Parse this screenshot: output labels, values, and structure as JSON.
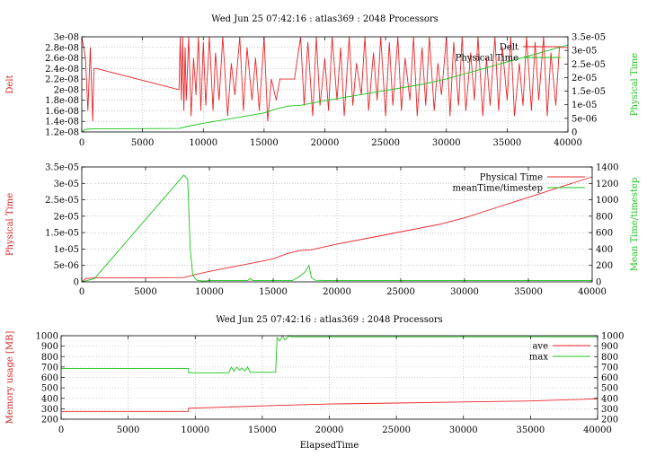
{
  "chart_data": [
    {
      "type": "line",
      "title": "Wed Jun 25 07:42:16 : atlas369 : 2048 Processors",
      "xlabel": "",
      "ylabel": "Delt",
      "y2label": "Physical Time",
      "xlim": [
        0,
        40000
      ],
      "ylim": [
        1.2e-08,
        3e-08
      ],
      "y2lim": [
        0,
        3.5e-05
      ],
      "grid": true,
      "legend_position": "top-right",
      "x_ticks": [
        0,
        5000,
        10000,
        15000,
        20000,
        25000,
        30000,
        35000,
        40000
      ],
      "x_tick_labels": [
        "0",
        "5000",
        "10000",
        "15000",
        "20000",
        "25000",
        "30000",
        "35000",
        "40000"
      ],
      "y_ticks": [
        1.2e-08,
        1.4e-08,
        1.6e-08,
        1.8e-08,
        2e-08,
        2.2e-08,
        2.4e-08,
        2.6e-08,
        2.8e-08,
        3e-08
      ],
      "y_tick_labels": [
        "1.2e-08",
        "1.4e-08",
        "1.6e-08",
        "1.8e-08",
        "2e-08",
        "2.2e-08",
        "2.4e-08",
        "2.6e-08",
        "2.8e-08",
        "3e-08"
      ],
      "y2_ticks": [
        0,
        5e-06,
        1e-05,
        1.5e-05,
        2e-05,
        2.5e-05,
        3e-05,
        3.5e-05
      ],
      "y2_tick_labels": [
        "0",
        "5e-06",
        "1e-05",
        "1.5e-05",
        "2e-05",
        "2.5e-05",
        "3e-05",
        "3.5e-05"
      ],
      "series": [
        {
          "name": "Delt",
          "axis": "y",
          "color": "#e8262a",
          "x": [
            0,
            300,
            500,
            700,
            900,
            1000,
            1200,
            8000,
            8100,
            8200,
            8300,
            8400,
            8500,
            8600,
            8800,
            9000,
            9200,
            9400,
            9600,
            9800,
            10000,
            10200,
            10500,
            10800,
            11000,
            11300,
            11600,
            12000,
            12300,
            12600,
            13000,
            13300,
            13600,
            14000,
            14300,
            14600,
            15000,
            15300,
            15600,
            16000,
            16300,
            16600,
            17000,
            17500,
            18000,
            18300,
            18600,
            19000,
            19300,
            19600,
            20000,
            20300,
            20600,
            21000,
            21300,
            21600,
            22000,
            22300,
            22600,
            23000,
            23300,
            23600,
            24000,
            24300,
            24600,
            25000,
            25300,
            25600,
            26000,
            26300,
            26600,
            27000,
            27300,
            27600,
            28000,
            28300,
            28600,
            29000,
            29300,
            29600,
            30000,
            30300,
            30600,
            31000,
            31300,
            31600,
            32000,
            32300,
            32600,
            33000,
            33300,
            33600,
            34000,
            34300,
            34600,
            35000,
            35300,
            35600,
            36000,
            36300,
            36600,
            37000,
            37300,
            37600,
            38000,
            38300,
            38600,
            39000,
            39300,
            39600,
            40000
          ],
          "y": [
            3e-08,
            2.6e-08,
            1.6e-08,
            2.8e-08,
            1.4e-08,
            2.4e-08,
            2.4e-08,
            2e-08,
            3e-08,
            1.8e-08,
            3e-08,
            1.6e-08,
            2.8e-08,
            1.8e-08,
            3e-08,
            1.5e-08,
            2.6e-08,
            1.9e-08,
            3e-08,
            1.6e-08,
            2.9e-08,
            1.7e-08,
            3e-08,
            1.6e-08,
            2.7e-08,
            1.8e-08,
            3e-08,
            1.5e-08,
            2.5e-08,
            1.9e-08,
            3e-08,
            1.6e-08,
            2.8e-08,
            1.8e-08,
            2.6e-08,
            1.6e-08,
            3e-08,
            1.4e-08,
            2.2e-08,
            1.8e-08,
            2.2e-08,
            2.2e-08,
            2.2e-08,
            2.2e-08,
            3e-08,
            1.7e-08,
            2.9e-08,
            1.5e-08,
            3e-08,
            1.7e-08,
            2.6e-08,
            1.6e-08,
            3e-08,
            1.8e-08,
            2.8e-08,
            1.5e-08,
            3e-08,
            1.7e-08,
            2.5e-08,
            1.9e-08,
            3e-08,
            1.6e-08,
            2.7e-08,
            1.8e-08,
            3e-08,
            1.5e-08,
            2.9e-08,
            1.7e-08,
            3e-08,
            1.6e-08,
            2.6e-08,
            1.8e-08,
            3e-08,
            1.5e-08,
            2.8e-08,
            1.7e-08,
            3e-08,
            1.6e-08,
            2.5e-08,
            1.9e-08,
            3e-08,
            1.5e-08,
            2.9e-08,
            1.7e-08,
            3e-08,
            1.6e-08,
            2.7e-08,
            1.8e-08,
            3e-08,
            1.5e-08,
            2.6e-08,
            1.7e-08,
            3e-08,
            1.6e-08,
            2.8e-08,
            1.8e-08,
            3e-08,
            1.5e-08,
            2.5e-08,
            1.7e-08,
            3e-08,
            1.6e-08,
            2.9e-08,
            1.8e-08,
            3e-08,
            1.5e-08,
            2.7e-08,
            1.7e-08,
            2.8e-08,
            2.8e-08,
            2.8e-08
          ]
        },
        {
          "name": "Physical Time",
          "axis": "y2",
          "color": "#19c519",
          "x": [
            0,
            300,
            1000,
            3000,
            8000,
            8500,
            9000,
            10000,
            12000,
            14000,
            15000,
            16000,
            17000,
            18000,
            20000,
            22000,
            24000,
            26000,
            28000,
            30000,
            32000,
            34000,
            36000,
            38000,
            40000
          ],
          "y": [
            0,
            1e-06,
            1.2e-06,
            1.2e-06,
            1.3e-06,
            1.8e-06,
            2.3e-06,
            3.2e-06,
            4.7e-06,
            6.2e-06,
            7e-06,
            8.5e-06,
            9.5e-06,
            9.8e-06,
            1.15e-05,
            1.3e-05,
            1.45e-05,
            1.6e-05,
            1.75e-05,
            1.95e-05,
            2.2e-05,
            2.45e-05,
            2.7e-05,
            2.95e-05,
            3.2e-05
          ]
        }
      ]
    },
    {
      "type": "line",
      "title": "",
      "xlabel": "",
      "ylabel": "Physical Time",
      "y2label": "Mean Time/timestep",
      "xlim": [
        0,
        40000
      ],
      "ylim": [
        0,
        3.5e-05
      ],
      "y2lim": [
        0,
        1400
      ],
      "grid": true,
      "legend_position": "top-right",
      "x_ticks": [
        0,
        5000,
        10000,
        15000,
        20000,
        25000,
        30000,
        35000,
        40000
      ],
      "x_tick_labels": [
        "0",
        "5000",
        "10000",
        "15000",
        "20000",
        "25000",
        "30000",
        "35000",
        "40000"
      ],
      "y_ticks": [
        0,
        5e-06,
        1e-05,
        1.5e-05,
        2e-05,
        2.5e-05,
        3e-05,
        3.5e-05
      ],
      "y_tick_labels": [
        "0",
        "5e-06",
        "1e-05",
        "1.5e-05",
        "2e-05",
        "2.5e-05",
        "3e-05",
        "3.5e-05"
      ],
      "y2_ticks": [
        0,
        200,
        400,
        600,
        800,
        1000,
        1200,
        1400
      ],
      "y2_tick_labels": [
        "0",
        "200",
        "400",
        "600",
        "800",
        "1000",
        "1200",
        "1400"
      ],
      "series": [
        {
          "name": "Physical Time",
          "axis": "y",
          "color": "#e8262a",
          "x": [
            0,
            300,
            1000,
            3000,
            8000,
            8500,
            9000,
            10000,
            12000,
            14000,
            15000,
            16000,
            17000,
            18000,
            20000,
            22000,
            24000,
            26000,
            28000,
            30000,
            32000,
            34000,
            36000,
            38000,
            40000
          ],
          "y": [
            0,
            1e-06,
            1.2e-06,
            1.2e-06,
            1.3e-06,
            1.8e-06,
            2.3e-06,
            3.2e-06,
            4.7e-06,
            6.2e-06,
            7e-06,
            8.5e-06,
            9.5e-06,
            9.8e-06,
            1.15e-05,
            1.3e-05,
            1.45e-05,
            1.6e-05,
            1.75e-05,
            1.95e-05,
            2.2e-05,
            2.45e-05,
            2.7e-05,
            2.95e-05,
            3.2e-05
          ]
        },
        {
          "name": "meanTime/timestep",
          "axis": "y2",
          "color": "#19c519",
          "x": [
            0,
            500,
            1000,
            8000,
            8300,
            8500,
            8700,
            9000,
            9500,
            10000,
            13000,
            13200,
            13400,
            16500,
            17000,
            17500,
            17800,
            18000,
            18300,
            19000,
            25000,
            30000,
            35000,
            40000
          ],
          "y": [
            0,
            20,
            40,
            1300,
            1250,
            400,
            80,
            20,
            10,
            15,
            15,
            40,
            15,
            15,
            60,
            120,
            200,
            50,
            20,
            18,
            18,
            18,
            18,
            18
          ]
        }
      ]
    },
    {
      "type": "line",
      "title": "Wed Jun 25 07:42:16 : atlas369 : 2048 Processors",
      "xlabel": "ElapsedTime",
      "ylabel": "Memory usage [MB]",
      "xlim": [
        0,
        40000
      ],
      "ylim": [
        200,
        1000
      ],
      "y2lim": [
        200,
        1000
      ],
      "grid": true,
      "legend_position": "top-right",
      "x_ticks": [
        0,
        5000,
        10000,
        15000,
        20000,
        25000,
        30000,
        35000,
        40000
      ],
      "x_tick_labels": [
        "0",
        "5000",
        "10000",
        "15000",
        "20000",
        "25000",
        "30000",
        "35000",
        "40000"
      ],
      "y_ticks": [
        200,
        300,
        400,
        500,
        600,
        700,
        800,
        900,
        1000
      ],
      "y_tick_labels": [
        "200",
        "300",
        "400",
        "500",
        "600",
        "700",
        "800",
        "900",
        "1000"
      ],
      "y2_ticks": [
        200,
        300,
        400,
        500,
        600,
        700,
        800,
        900,
        1000
      ],
      "y2_tick_labels": [
        "200",
        "300",
        "400",
        "500",
        "600",
        "700",
        "800",
        "900",
        "1000"
      ],
      "series": [
        {
          "name": "ave",
          "axis": "y",
          "color": "#e8262a",
          "x": [
            0,
            9500,
            9500,
            12000,
            15500,
            17000,
            20000,
            25000,
            30000,
            35000,
            40000
          ],
          "y": [
            275,
            275,
            305,
            315,
            330,
            335,
            345,
            355,
            365,
            375,
            395
          ]
        },
        {
          "name": "max",
          "axis": "y",
          "color": "#19c519",
          "x": [
            0,
            9500,
            9500,
            12500,
            12700,
            12900,
            13100,
            13300,
            13500,
            13700,
            13900,
            14100,
            14500,
            15500,
            16000,
            16100,
            16300,
            16500,
            16700,
            17000,
            17200,
            40000
          ],
          "y": [
            685,
            685,
            645,
            645,
            700,
            660,
            700,
            670,
            690,
            660,
            700,
            650,
            650,
            650,
            650,
            980,
            950,
            1000,
            960,
            1000,
            990,
            990
          ]
        }
      ]
    }
  ]
}
